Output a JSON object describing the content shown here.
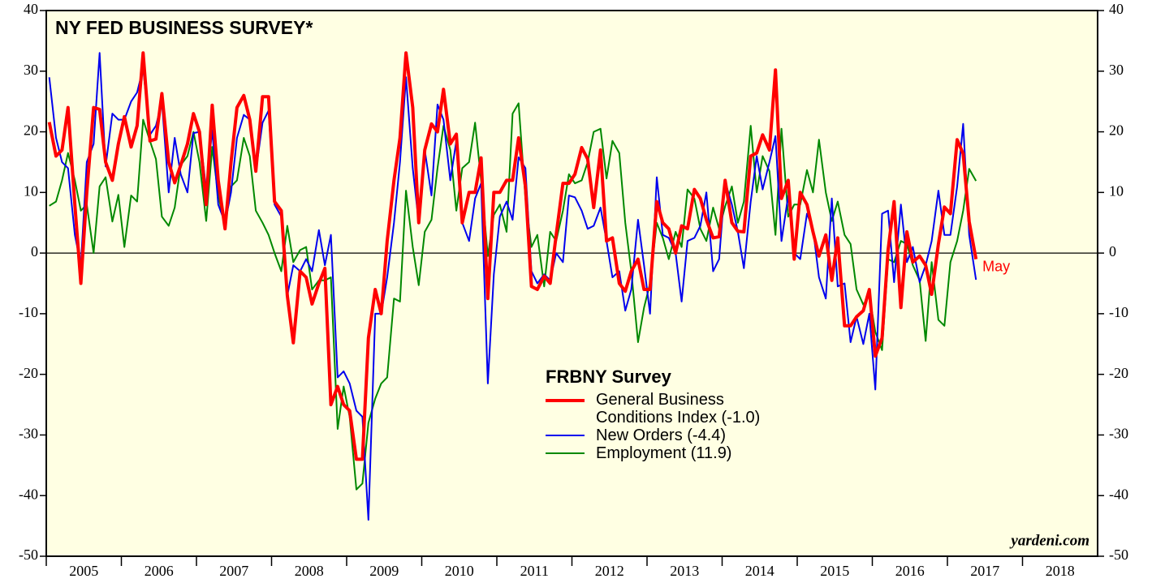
{
  "chart_data": {
    "type": "line",
    "title": "NY FED BUSINESS SURVEY*",
    "source": "yardeni.com",
    "legend_title": "FRBNY Survey",
    "annotation": "May",
    "xlim": [
      2005,
      2019
    ],
    "xticks": [
      2005,
      2006,
      2007,
      2008,
      2009,
      2010,
      2011,
      2012,
      2013,
      2014,
      2015,
      2016,
      2017,
      2018
    ],
    "ylim": [
      -50,
      40
    ],
    "yticks": [
      -50,
      -40,
      -30,
      -20,
      -10,
      0,
      10,
      20,
      30,
      40
    ],
    "x": [
      2005.04,
      2005.13,
      2005.21,
      2005.29,
      2005.38,
      2005.46,
      2005.54,
      2005.63,
      2005.71,
      2005.79,
      2005.88,
      2005.96,
      2006.04,
      2006.13,
      2006.21,
      2006.29,
      2006.38,
      2006.46,
      2006.54,
      2006.63,
      2006.71,
      2006.79,
      2006.88,
      2006.96,
      2007.04,
      2007.13,
      2007.21,
      2007.29,
      2007.38,
      2007.46,
      2007.54,
      2007.63,
      2007.71,
      2007.79,
      2007.88,
      2007.96,
      2008.04,
      2008.13,
      2008.21,
      2008.29,
      2008.38,
      2008.46,
      2008.54,
      2008.63,
      2008.71,
      2008.79,
      2008.88,
      2008.96,
      2009.04,
      2009.13,
      2009.21,
      2009.29,
      2009.38,
      2009.46,
      2009.54,
      2009.63,
      2009.71,
      2009.79,
      2009.88,
      2009.96,
      2010.04,
      2010.13,
      2010.21,
      2010.29,
      2010.38,
      2010.46,
      2010.54,
      2010.63,
      2010.71,
      2010.79,
      2010.88,
      2010.96,
      2011.04,
      2011.13,
      2011.21,
      2011.29,
      2011.38,
      2011.46,
      2011.54,
      2011.63,
      2011.71,
      2011.79,
      2011.88,
      2011.96,
      2012.04,
      2012.13,
      2012.21,
      2012.29,
      2012.38,
      2012.46,
      2012.54,
      2012.63,
      2012.71,
      2012.79,
      2012.88,
      2012.96,
      2013.04,
      2013.13,
      2013.21,
      2013.29,
      2013.38,
      2013.46,
      2013.54,
      2013.63,
      2013.71,
      2013.79,
      2013.88,
      2013.96,
      2014.04,
      2014.13,
      2014.21,
      2014.29,
      2014.38,
      2014.46,
      2014.54,
      2014.63,
      2014.71,
      2014.79,
      2014.88,
      2014.96,
      2015.04,
      2015.13,
      2015.21,
      2015.29,
      2015.38,
      2015.46,
      2015.54,
      2015.63,
      2015.71,
      2015.79,
      2015.88,
      2015.96,
      2016.04,
      2016.13,
      2016.21,
      2016.29,
      2016.38,
      2016.46,
      2016.54,
      2016.63,
      2016.71,
      2016.79,
      2016.88,
      2016.96,
      2017.04,
      2017.13,
      2017.21,
      2017.29,
      2017.38
    ],
    "series": [
      {
        "name": "General Business Conditions Index (-1.0)",
        "color": "#ff0000",
        "line_width": 4,
        "values": [
          21.6,
          16,
          17,
          24,
          8,
          -5,
          10,
          24,
          23.7,
          15,
          12,
          18,
          22.5,
          17.5,
          21,
          33,
          18.5,
          18.8,
          26.3,
          15,
          11.6,
          14.5,
          18,
          23,
          20,
          8,
          24.4,
          12,
          4,
          15,
          24,
          26,
          22,
          13.5,
          25.8,
          25.8,
          8.5,
          7,
          -7,
          -14.8,
          -3,
          -4,
          -8.4,
          -5,
          -2.5,
          -25,
          -22,
          -25,
          -26,
          -34,
          -34,
          -14,
          -6,
          -10,
          2,
          12,
          19,
          33,
          24,
          5,
          17,
          21.3,
          20,
          27,
          18,
          19.6,
          5,
          10,
          10,
          15.7,
          -7.5,
          10,
          10,
          12,
          12,
          19,
          11,
          -5.5,
          -6,
          -3.8,
          -5,
          3,
          11.5,
          11.5,
          13,
          17.4,
          15.5,
          7.5,
          17,
          2,
          2.5,
          -5,
          -6.3,
          -3,
          -1,
          -6,
          -6,
          8.5,
          5,
          4,
          0,
          4.5,
          4,
          10.5,
          9,
          5.5,
          2.5,
          2.7,
          12,
          5,
          3.6,
          3.5,
          16,
          16.5,
          19.5,
          17,
          30.2,
          9,
          12,
          -1,
          10,
          8,
          3.5,
          -0.5,
          3,
          -4.5,
          2.5,
          -12,
          -12,
          -10.5,
          -9.5,
          -6,
          -17,
          -14,
          0.5,
          8.5,
          -9,
          3.5,
          -1.5,
          -0.5,
          -2,
          -6.8,
          1.5,
          7.6,
          6.5,
          18.7,
          16.4,
          5.2,
          -1.0
        ]
      },
      {
        "name": "New Orders (-4.4)",
        "color": "#0000ee",
        "line_width": 2,
        "values": [
          29,
          19,
          15,
          14,
          3,
          -2,
          15,
          18,
          33,
          14.3,
          23,
          22,
          22,
          25,
          26.5,
          30.5,
          19.5,
          21,
          25,
          10,
          19,
          13,
          10,
          19.8,
          20,
          10.5,
          20.3,
          8,
          5,
          10,
          19,
          22.8,
          22,
          13.5,
          21.5,
          23.5,
          8,
          6,
          -7,
          -2,
          -3,
          -1,
          -3,
          3.8,
          -2,
          3,
          -20.5,
          -19.5,
          -21.5,
          -26,
          -27,
          -44,
          -10,
          -10,
          -4,
          5,
          15,
          29,
          14,
          5,
          17,
          9.5,
          24.5,
          22,
          12,
          18.5,
          5,
          2,
          9,
          11.5,
          -21.5,
          -3.5,
          6,
          8.5,
          5.5,
          15.8,
          14,
          -3,
          -5,
          -3.5,
          -4.5,
          0,
          -1.5,
          9.5,
          9.2,
          7,
          4,
          4.5,
          7.5,
          2,
          -4,
          -3,
          -9.5,
          -6,
          5.5,
          -2,
          -10,
          12.5,
          3,
          2.5,
          0,
          -8,
          2,
          2.5,
          4.5,
          10,
          -3,
          -1,
          11.8,
          8,
          3.5,
          -2.5,
          8.5,
          16,
          10.5,
          15,
          19.3,
          2,
          9.5,
          0,
          -1,
          6.5,
          4,
          -4,
          -7.5,
          9,
          -5.5,
          -5,
          -14.7,
          -10.5,
          -15,
          -10,
          -22.5,
          6.5,
          7,
          -4.8,
          8,
          -1.5,
          1,
          -4.8,
          -2,
          2,
          10.3,
          3,
          3,
          11,
          21.3,
          3,
          -4.4
        ]
      },
      {
        "name": "Employment (11.9)",
        "color": "#008800",
        "line_width": 2,
        "values": [
          7.8,
          8.5,
          12,
          16.5,
          12,
          7,
          8,
          0,
          11,
          12.5,
          5.2,
          9.6,
          1,
          9.5,
          8.5,
          22,
          18.5,
          15.5,
          6,
          4.5,
          7.5,
          14.5,
          16,
          20,
          15,
          5.3,
          17.5,
          9.5,
          4.4,
          11,
          12,
          19,
          16,
          7,
          5,
          3,
          0,
          -3,
          4.5,
          -1.5,
          0.5,
          1,
          -6,
          -4.5,
          -4.5,
          -4,
          -29,
          -22,
          -27,
          -39,
          -38,
          -28,
          -24,
          -21.5,
          -20.5,
          -7.5,
          -8,
          10.3,
          1,
          -5.3,
          3.5,
          5.5,
          14,
          21,
          17,
          7,
          14,
          15,
          21.5,
          12,
          -0.5,
          6.3,
          8,
          3.5,
          23,
          24.7,
          9,
          1,
          3,
          -5.5,
          3.5,
          2,
          7,
          13,
          11.5,
          12,
          15,
          20,
          20.5,
          12.3,
          18.5,
          16.5,
          5,
          -3,
          -14.7,
          -9,
          -5,
          5,
          2.5,
          -1,
          3.5,
          1,
          10.5,
          9,
          4,
          2,
          7.5,
          4,
          7.7,
          11,
          5,
          8.5,
          21,
          10,
          16,
          13.5,
          3,
          20.5,
          6,
          8,
          8,
          13.7,
          10,
          18.7,
          10,
          5.3,
          8.5,
          3,
          1.5,
          -6,
          -8.5,
          -7,
          -13,
          -16,
          -1,
          -1.5,
          2,
          1.5,
          -2,
          -4.5,
          -14.5,
          -1.5,
          -11,
          -12,
          -1.5,
          2,
          7,
          13.9,
          11.9
        ]
      }
    ]
  }
}
